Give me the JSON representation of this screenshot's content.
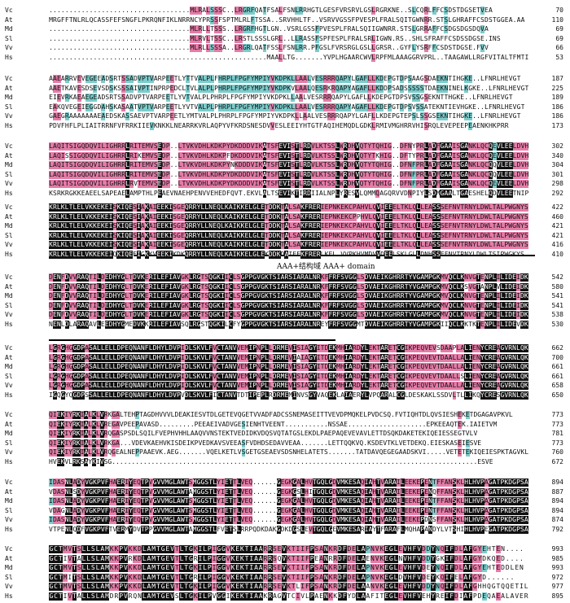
{
  "blocks": [
    {
      "rows": [
        {
          "name": "Vc",
          "seq": "...................................MLRALSSSC..LRGRFQATFSALFSNLRRHGTLGESFVRSRVLGSLRGRKNE..SLCQRLFFCSDSTDGSETVEA",
          "end": "70"
        },
        {
          "name": "At",
          "seq": "MRGFFTNLRLQCASSFEFSNGFLPKRQNFIKLNRRNCYPRSSFSPTMLRLFTSSA..SRVHHLTF..VSRVVGSSFPVESPLFRALSQITGWNRR.STSLGHRAFFCSDSTGGEA.AA",
          "end": "110"
        },
        {
          "name": "Md",
          "seq": "...................................MLRLLTSSS..LRGRFHGTLGN..VSRLGSSFPVESPLFRALSQIIGWNRR.STSLGRRAFFCSDGSDGSDQVA",
          "end": "69"
        },
        {
          "name": "Sl",
          "seq": "...................................MLRVLTSSC..LRSTLSSSLGRL..LLRASSFSPFESPLFRALSRLIGWN.RS..SHLSFRAFFCSDSSDGSE.INS",
          "end": "69"
        },
        {
          "name": "Vv",
          "seq": "...................................MLRLLSSSA..LRGRLQATFSSLFSNLRR.PFGSLFVRSRGLGSLLGRSR..GYFLYSRFFCSDSTDGSE.FVV",
          "end": "66"
        },
        {
          "name": "Hs",
          "seq": "......................................................MAALLTG.......YVPLHGAARCWVLRPFMLAAAGGRVPRL..TAAGAWLLRGFVITALTFMTI",
          "end": "53"
        }
      ]
    },
    {
      "rows": [
        {
          "name": "Vc",
          "seq": "AAEARRVEVEGEEADSRTSSADVPTVARPEETLYTTVALPLFHRPLFPGFYMPIYVKDPKLLAALVESRRRQAPYLGAFLLKDEPGTDPSAAGSDAEKNTIHGKE..LFNRLHEVGT",
          "end": "187"
        },
        {
          "name": "At",
          "seq": "AAETKAVESDSEVSDSKSSSAIVPTINPRPEDCLTVLALPLPHRPLFPGFYMPIYVKDPKVLAALQESRKRQAPYAGAFLLKDDPSADSSSSSTDAEKNINELKGKE..LFNRLHEVGT",
          "end": "225"
        },
        {
          "name": "Md",
          "seq": "EIEVRKAEAEGEADSRTSSADVPTVARPEETLYVTVALPLPHRPLFPGFYMPIYVKDPKLLAALVESRRRQAPYLGAFLLKDEPGTDPSVSSGSEKNTTHGKE..LFNRLHEVGT",
          "end": "189"
        },
        {
          "name": "Sl",
          "seq": "EAKQVEGEIEGGDAHSKASAATVPTVARPEETLYVTVALPLPHRPLFPGFYMPIYVKDPKLLAALVESRRRQAPYAGAFLLKDEPGTDPSVSSATEKNTIEVHGKE..LFNRLHEVGT",
          "end": "186"
        },
        {
          "name": "Vv",
          "seq": "GAEGRAAAAAAAEAEDSKASSAEVPTVARPEETLYMTVALPLPHRPLFPGFYMPIYVKDPKLLAALVESRRRQAPYLGAFLLKDEPGTEPSLSSGSEKNTIHGKE..LFNRLHEVGT",
          "end": "186"
        },
        {
          "name": "Hs",
          "seq": "PDVFHFLPLIAITRRNFVFRRKIIEVKNKKLNEARRKVRLAQPYVFKRDSNESDVVESLEEIYHTGTFAQIHEMQDLGDKLRMIVMGHRRVHISRQLEVEPEEPEAENKHKPRR",
          "end": "173"
        }
      ]
    },
    {
      "rows": [
        {
          "name": "Vc",
          "seq": "LAQITSIGQDQVILIGHRRLRITEMVSEDP..LTVKVDHLKDKPYDKDDDVIKATSFEVISTLRDVLKTSSLWRDHVQTYTQHIG..DFNYPRLADFGAAISGANKLQCQEVLEELDVH",
          "end": "302"
        },
        {
          "name": "At",
          "seq": "LAQISSIGQDQVILIGHRRLRIKEMVSEDP..LTVKVDHLKDKPFDKDDDVIKATSFEVISTLRDVLKTSSLWRDHVQTYTKHIG..DFTYPRLADFGAAISGANKLQCQEVLEELDVH",
          "end": "340"
        },
        {
          "name": "Md",
          "seq": "LAQITSIGQDQVILIGHRRLRITEMVSEDP..LTVKVDHLKDKPYNKDDDVIKATSFEVISTLRDVLKTSSLWRDHVQTYTQHIG..DFNFPRLADFGAAISGANKLQCQQVLEELDVH",
          "end": "304"
        },
        {
          "name": "Sl",
          "seq": "LAQITSIGQDQVILIGHRRLRITEMVSEDP..LTVKVDHLKDKPYDKDDDVIKATSFEVISTLRDVLKTSSLWRDHVQTYTQHIG..DFNFPRLADFGAAISGANKLQCQQVLEELDVH",
          "end": "301"
        },
        {
          "name": "Vv",
          "seq": "LAQITSIGQDQVILIGHRRLRVTEMVSEDP..LTVKVDHLKDKPYDKDDDVIKATSFEVISTLRDVLKTSSLWRDHVQTYTQHIG..DFNFPRLADFGAAISGANKLQCQEVLEELDVH",
          "end": "298"
        },
        {
          "name": "Hs",
          "seq": "KSRKRGKKEAEELSAPEAELAMPTHLPEAEVNAEHPENVVEHEDFQVT.EKVLALTSEVIKTIRDIIALNPLYRESVLQMMQAGQRVVDNPIYLSDMGAALTGAESHELQDVLEETNIP",
          "end": "292"
        }
      ]
    },
    {
      "rows": [
        {
          "name": "Vc",
          "seq": "KRLKLTLELVKKEKEISKIQESIAKAIEEKISGEQRRYLLNEQLKAIKKELGLETDDKTALSAKFRERIEPNKEKCPAHVLQVIEEELTKLQLLEASSSEFNVTRNYLDWLTALPWGNYS",
          "end": "422"
        },
        {
          "name": "At",
          "seq": "KRLKLTLELVKKEKEISKIQESIAKAIEEKISGEQRRYLLNEQLKAIKKELGLETDDKTALSAKFRERIEPNKEKCPPHVLQVIEEELTKLQLLEASSSEFNVTRNYLDWLTALPWGNYS",
          "end": "460"
        },
        {
          "name": "Md",
          "seq": "KRLKLTLELVKKEKEISKIQESIAKAIEEKISGEQRRYLLNEQLKAIKKELGLETDDKTALSAKFRERIEPNKEKCPAHVLQVIEEELTKLQLLEASSSEFNVTRNYLDWLTALPWGNYS",
          "end": "421"
        },
        {
          "name": "Sl",
          "seq": "KRLKLTLELVKKEKEISKIQESIAKAIEEKISGEQRRYLLNEQLKAIKKELGLETDDKTALSAKFRERIEPNKEKCPAHVLQVIEEELTKLQLLEASSSEFNVTRNYLDWLTALPWGNYS",
          "end": "421"
        },
        {
          "name": "Vv",
          "seq": "KRLKLTLELVKKEKEISKIQESIAKAIEEKISGEQRRYLLNEQLKAIKKELGLETDDKTALSAKFRERIEPNKEKCPAHVLQVIEEELTKLQLLEASSSEFNVTRNYLDWLTALPWGNYS",
          "end": "416"
        },
        {
          "name": "Hs",
          "seq": "KRLKLTLELVKKEKEIQKIQEEIGKKVEEKIKDKQRRYLLNEQLKAIKKELGLEKDDKDAIEEKFRERLKEL.VVPKHVMDVVDEELSKLGLLDNHSSEFNVTRNYLDWLTSIPWGKYS",
          "end": "410"
        }
      ]
    },
    {
      "rows": [
        {
          "name": "Vc",
          "seq": "DENFDVVRAQTILDEDHYGLTDVKERILEFIAVGKLRGTSQGKIICLSGPPGVGKTSIARSIARALNRKFFRFSVGGLSDVAEIKGHRRTYVGAMPGKMVQCLKNVGTENPLILIDEIDK",
          "end": "542"
        },
        {
          "name": "At",
          "seq": "DENFDVVRAQTILDEDHYGLTDVKERILEFIAVGKLRGTSQGKIICLSGPPGVGKTSIARSIARALNRKFFRFSVGGLSDVAEIKGHRRTYVGAMPGKMVQCLKSVGTANPLVLIDEIDK",
          "end": "580"
        },
        {
          "name": "Md",
          "seq": "DENFDVVRAQTILDEDHYGLTDVKERILEFIAVGKLRGTSQGKIICLSGPPGVGKTSIARSIARALNRKFFRFSVGGLSDVAEIKGHRRTYVGAMPGKMVQCLKNVGTENPLILIDEIDK",
          "end": "541"
        },
        {
          "name": "Sl",
          "seq": "DENFDVVRAQTILDEDHYGLTDVKERILEFIAVGKLRGTSQGKIICLSGPPGVGKTSIARSIARALNRKFFRFSVGGLSDVAEIKGHRRTYVGAMPGKMVQCLKNVGTENPLILIDEIDK",
          "end": "541"
        },
        {
          "name": "Vv",
          "seq": "DENFDVVRAQTILDEDHYGLTDVKERILEFIAVGKLRGTSQGKIICLSGPPGVGKTSIARSIARALNRKFFRFSVGGLSDVAEIKGHRRTYVGAMPGKMVQCLKNVGTENPLILIDEIDK",
          "end": "538"
        },
        {
          "name": "Hs",
          "seq": "NENLDLARAQAVLEEDHYGMEDVKKRILEFIAVSQLRGSTQGKILCFYGPPGVGKTSIARSIARALNREYFRFSVGGMTDVAEIKGHRRTYVGAMPGKIIQCLKKTKTENPLILIDEVDK",
          "end": "530"
        }
      ]
    },
    {
      "rows": [
        {
          "name": "Vc",
          "seq": "LGRGHGGDPASALLELLDPEQNANFLDHYLDVPIDLSKVLFVCTANVVEMIPNPLLDRMEVISIAGYITDEKMHIARDYLEKTARETCGIKPEQVEVSDAAPLALIENYCREAGVRNLQK",
          "end": "662"
        },
        {
          "name": "At",
          "seq": "LGRGHGGDPASALLELLDPEQNANFLDHYLDVPIDLSKVLFVCTANVVEMIPNPLLDRMEVIAIAGYITDEKMHIARDYLEKTARETCGIKPEQVEVTDAALLALIENYCREAGVRNLQK",
          "end": "700"
        },
        {
          "name": "Md",
          "seq": "LGRGHGGDPASALLELLDPEQNANFLDHYLDVPIDLSKVLFVCTANVVEMIPNPLLDRMEVISIAGYITDEKMHIARDYLEKTARETCGIKPEQVEVTDAALLALIENYCREAGVRNLQK",
          "end": "661"
        },
        {
          "name": "Sl",
          "seq": "LGRGHGGDPASALLELLDPEQNANFLDHYLDVPIDLSKVLFVCTANVVEMIPNPLLDRMEVISIAGYITDEKMHIARDYLEKTARETCGIKPEQVEVTDAALLSLIENYCREAGVRNLQK",
          "end": "661"
        },
        {
          "name": "Vv",
          "seq": "LGRGHGGDPASALLELLDPEQNANFLDHYLDVPIDLSKVLFVCTANVVEMIPNPLLDRMEVISIAGYITDEKMHIARDYLEKTARETCGIKPEQVEVTDAALLALIENYCREAGVRNLQK",
          "end": "658"
        },
        {
          "name": "Hs",
          "seq": "IGQGYQGDPSSALLELLDPEQNANFLDHYLDVPVDLSKVLFICTANVTDTIPEPLRDRMEMINVSGYVAQEKLAIAERYLVPQARALCGLDESKAKLSSDVLTLLIKQYCRESGVRNLQK",
          "end": "650"
        }
      ]
    },
    {
      "rows": [
        {
          "name": "Vc",
          "seq": "QIEKIYRKIALKLVRKGALTEHPTAGDHVVVLDEAKIESVTDLGETEVQGETVVADFADCSSNEMASEITTVEVDPMQKELPVDCSQ.FVTIQHTDLQVSIESHEKETDGAGAVPKVL",
          "end": "773"
        },
        {
          "name": "At",
          "seq": "QIEKIYRKIALKLVREGAVPEEPAVASD.........PEEAEIVADVGESIENHTVEENT...........NSSAE....................EPKEEAQTEK.IAIETVM",
          "end": "773"
        },
        {
          "name": "Md",
          "seq": "QIEKIYRKIALKLVRQGASPSDLSQILFVEPHVHHLAAQVVNSTEKTVEDIDKVDQSVQTATGSLEKDLPAEPAQEVEVAVLETTDSQKDAKETEKIQEIESSEGTVLV",
          "end": "781"
        },
        {
          "name": "Sl",
          "seq": "QIEKIYRKIALKLVRKGA...VDEVKAEHVKISDEIKPVEDKAVSVEEASFVDHDSEDAVVEAA.......LETTQQKVQ.KSDEVTKLVETDEKQ.EIESKASEIESVE",
          "end": "773"
        },
        {
          "name": "Vv",
          "seq": "QIEKIYRKIALKLVRQGEALNEPPAAEVK.AEG.......VQELKETLVSGETGSEAEVSDSNHELATETS.......TATDAVQEGEGAADSKVI.....VETETEKIQEIESPKTAGVKL",
          "end": "760"
        },
        {
          "name": "Hs",
          "seq": "HVEKVLRKSAYKIVSG.............................................................................................ESVE",
          "end": "672"
        }
      ]
    },
    {
      "rows": [
        {
          "name": "Vc",
          "seq": "IDASNLADYVGKPVFHAERIYEQTPVGVVMGLAWTSMGGSTLYIETTLVEQ......GEGKGALHVTGQLGDVMKESAQIAHTVARAILEEKEPENTFFANSKLHLHVPAGATPKDGPSA",
          "end": "894"
        },
        {
          "name": "At",
          "seq": "VDASNLSDYVGKPVFHAERIYEQTPVGVVMGLAWTAMGGSTLYIETTLVEQ......GEGKGSLHITGQLGDVMKESAQIAHTVARAILEEKEPENQFFANSKLHLHVPAGATPKDGPSA",
          "end": "887"
        },
        {
          "name": "Md",
          "seq": "IDASNLADYVGKPVFHAERIYEQTPVGVVMGLAWTSMGGSTLYIETTLVEQ......GEGKGALHVTGQLGDVMKESAQIAHTVARAILEEKEPENTFFANSKLHLHVPAGATPKDGPSA",
          "end": "894"
        },
        {
          "name": "Sl",
          "seq": "VDAGNLADYVGKPVFHAERIYEQTPVGVVMGLAWTSMGGSTLYIETTLVEQ......GEGKGALHVTGQLGDVMKESAQIAHTVARAILEEKEPENTFFANSKLHLHVPAGATPKDGPSA",
          "end": "894"
        },
        {
          "name": "Vv",
          "seq": "IDASNLADYVGKPVFHAERIYEQTPVGVVMGLAWTSMGGSTLYIETTLVEQ......GEGKGALHVTGQLGDVMKESAQIAHTVARAILEEKEPDNSFFANSKLHLHVPAGATPKDGPSA",
          "end": "874"
        },
        {
          "name": "Hs",
          "seq": "VTPENLQDFVGKPVFTVERMYDVTPPGVVMGLAWTAMGGSTLFVETSLRRPQDKDAKGDKDGSLEVTGQLGEVMKESARIAYTFARAFLMQHAPANDYLVTSHIHLHVPEGATPKDGPSA",
          "end": "792"
        }
      ]
    },
    {
      "rows": [
        {
          "name": "Vc",
          "seq": "GCTMVTSLLSLAMKKPVKKDLAMTGEVTLTGKILPIGGVKEKTIAARRSEVKTIIFPSANKRDFDELAPNVKEGLEVHFVDDYNQIFDLAFGYEHTEN....",
          "end": "993"
        },
        {
          "name": "At",
          "seq": "GCTIVTALLSLAMKKPVRKDLAMTGEVTLTGRILPIGGVKEKTIAARRSQVKTIIFPEANRRDFDELAENVKEGLNVHFVDDYGKIFDLAFGYDKQED....",
          "end": "985"
        },
        {
          "name": "Md",
          "seq": "GCTMVTSLLSLAMKKPVKKDLAMTGEVTLTGKILPIGGVKEKTIAARRSEVKTIIFPSANKRDFDELAPNVKEGLEVHFVDEYNQIFDLAFGYEHTEDDLEN",
          "end": "993"
        },
        {
          "name": "Sl",
          "seq": "GCTMITSLLSLAMKKPVKKDLAMTGEVTLTGRILPIGGVKEKTIAARRSEVKTIIFPSANKRDFDELAPNVKEGLDVHFVDEYKQIFELAFGYD......",
          "end": "972"
        },
        {
          "name": "Vv",
          "seq": "GCTMVTSLLSLAMKKPVKKDLAMTGEVTLTGKILPIGGVKEKTIAARRSEVKTLIFPSANKRDFDELAANVKEGLEVHFVDDYNQIFDLAFGHHQGTQQETIL",
          "end": "977"
        },
        {
          "name": "Hs",
          "seq": "GCTIVTALLSLAMDRPVRQNLAMTGEVSLTGKILPVGGIKEKTIAAKRAGVTCIVLPAENKKDFYDLAAFITEGLEVHFVEHYREIFDIAFPDEQAEALAVER",
          "end": "895"
        }
      ]
    }
  ],
  "annotation": "AAA+结构域  AAA+ domain"
}
